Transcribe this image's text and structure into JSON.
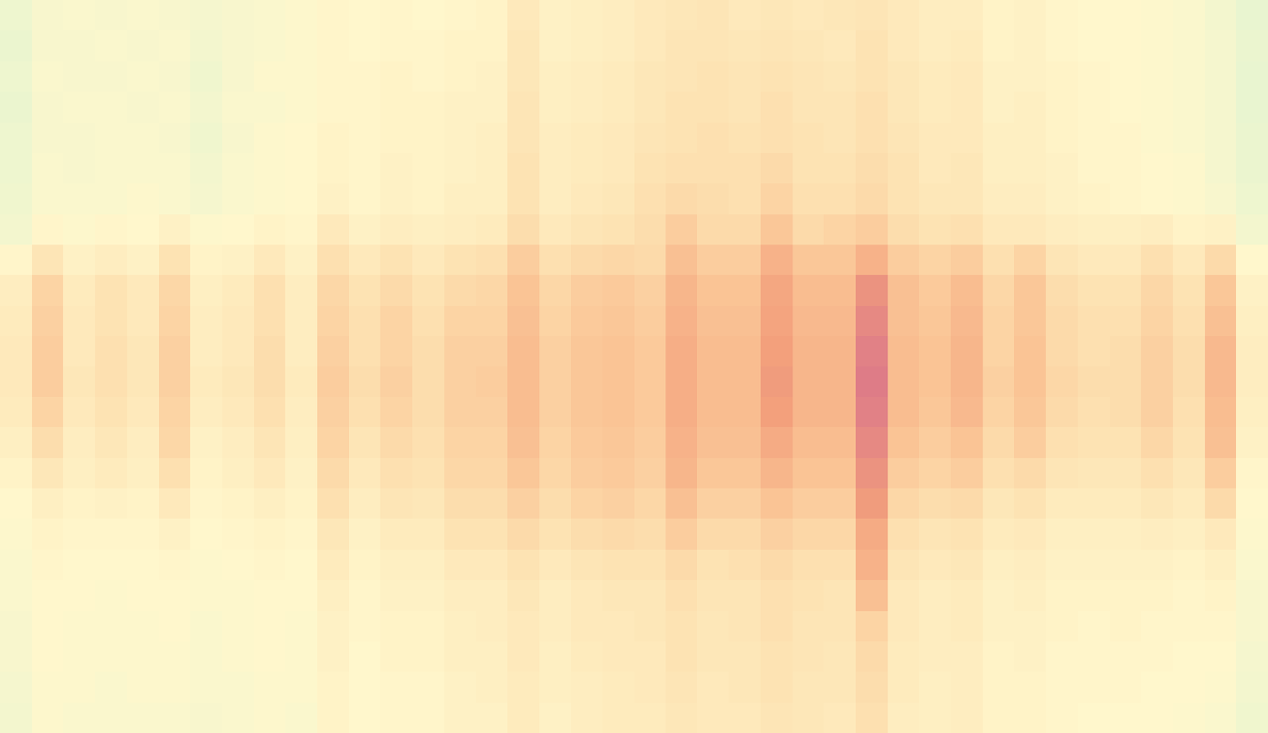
{
  "chart_data": {
    "type": "heatmap",
    "tick_labels": false,
    "zlim": [
      0,
      1
    ],
    "z": [
      [
        0.38,
        0.42,
        0.43,
        0.42,
        0.43,
        0.42,
        0.41,
        0.42,
        0.43,
        0.44,
        0.46,
        0.45,
        0.46,
        0.45,
        0.46,
        0.47,
        0.52,
        0.48,
        0.49,
        0.5,
        0.52,
        0.53,
        0.54,
        0.52,
        0.53,
        0.52,
        0.53,
        0.54,
        0.52,
        0.5,
        0.5,
        0.47,
        0.48,
        0.46,
        0.45,
        0.45,
        0.44,
        0.43,
        0.4,
        0.36
      ],
      [
        0.37,
        0.42,
        0.42,
        0.43,
        0.42,
        0.43,
        0.4,
        0.42,
        0.43,
        0.44,
        0.46,
        0.45,
        0.46,
        0.46,
        0.47,
        0.47,
        0.53,
        0.48,
        0.49,
        0.5,
        0.52,
        0.54,
        0.54,
        0.53,
        0.54,
        0.53,
        0.52,
        0.55,
        0.52,
        0.5,
        0.51,
        0.47,
        0.48,
        0.46,
        0.45,
        0.45,
        0.44,
        0.43,
        0.41,
        0.37
      ],
      [
        0.38,
        0.43,
        0.42,
        0.42,
        0.43,
        0.42,
        0.39,
        0.42,
        0.44,
        0.44,
        0.46,
        0.46,
        0.47,
        0.46,
        0.47,
        0.48,
        0.53,
        0.49,
        0.5,
        0.51,
        0.53,
        0.54,
        0.55,
        0.54,
        0.55,
        0.54,
        0.53,
        0.55,
        0.53,
        0.51,
        0.52,
        0.48,
        0.48,
        0.47,
        0.46,
        0.45,
        0.44,
        0.43,
        0.41,
        0.36
      ],
      [
        0.37,
        0.42,
        0.43,
        0.43,
        0.42,
        0.43,
        0.4,
        0.43,
        0.43,
        0.44,
        0.46,
        0.46,
        0.47,
        0.47,
        0.48,
        0.48,
        0.54,
        0.49,
        0.5,
        0.51,
        0.53,
        0.55,
        0.55,
        0.54,
        0.56,
        0.54,
        0.54,
        0.56,
        0.53,
        0.51,
        0.52,
        0.48,
        0.49,
        0.47,
        0.46,
        0.45,
        0.44,
        0.43,
        0.41,
        0.36
      ],
      [
        0.38,
        0.42,
        0.42,
        0.43,
        0.43,
        0.42,
        0.39,
        0.42,
        0.44,
        0.45,
        0.47,
        0.46,
        0.47,
        0.47,
        0.48,
        0.49,
        0.54,
        0.5,
        0.51,
        0.52,
        0.54,
        0.55,
        0.56,
        0.55,
        0.56,
        0.55,
        0.54,
        0.56,
        0.54,
        0.52,
        0.52,
        0.49,
        0.49,
        0.47,
        0.46,
        0.46,
        0.44,
        0.43,
        0.41,
        0.37
      ],
      [
        0.38,
        0.43,
        0.42,
        0.43,
        0.43,
        0.43,
        0.4,
        0.43,
        0.44,
        0.45,
        0.47,
        0.46,
        0.48,
        0.47,
        0.48,
        0.49,
        0.55,
        0.5,
        0.51,
        0.52,
        0.55,
        0.56,
        0.56,
        0.56,
        0.58,
        0.55,
        0.55,
        0.57,
        0.55,
        0.52,
        0.53,
        0.49,
        0.49,
        0.48,
        0.46,
        0.46,
        0.45,
        0.44,
        0.41,
        0.37
      ],
      [
        0.39,
        0.43,
        0.43,
        0.43,
        0.44,
        0.43,
        0.41,
        0.43,
        0.44,
        0.45,
        0.48,
        0.46,
        0.48,
        0.47,
        0.49,
        0.49,
        0.55,
        0.5,
        0.52,
        0.53,
        0.56,
        0.58,
        0.57,
        0.56,
        0.6,
        0.56,
        0.56,
        0.58,
        0.55,
        0.53,
        0.53,
        0.5,
        0.5,
        0.48,
        0.47,
        0.46,
        0.45,
        0.44,
        0.42,
        0.38
      ],
      [
        0.4,
        0.46,
        0.44,
        0.46,
        0.45,
        0.48,
        0.44,
        0.45,
        0.47,
        0.46,
        0.52,
        0.48,
        0.5,
        0.49,
        0.5,
        0.51,
        0.57,
        0.52,
        0.54,
        0.55,
        0.57,
        0.62,
        0.58,
        0.58,
        0.64,
        0.58,
        0.6,
        0.62,
        0.57,
        0.55,
        0.56,
        0.52,
        0.52,
        0.5,
        0.49,
        0.49,
        0.5,
        0.47,
        0.48,
        0.4
      ],
      [
        0.46,
        0.54,
        0.48,
        0.5,
        0.48,
        0.55,
        0.47,
        0.48,
        0.52,
        0.48,
        0.56,
        0.52,
        0.55,
        0.52,
        0.55,
        0.56,
        0.62,
        0.56,
        0.58,
        0.59,
        0.58,
        0.66,
        0.62,
        0.62,
        0.7,
        0.64,
        0.64,
        0.7,
        0.62,
        0.6,
        0.62,
        0.56,
        0.6,
        0.54,
        0.52,
        0.52,
        0.56,
        0.52,
        0.58,
        0.45
      ],
      [
        0.5,
        0.6,
        0.51,
        0.55,
        0.52,
        0.59,
        0.49,
        0.51,
        0.56,
        0.5,
        0.59,
        0.55,
        0.58,
        0.55,
        0.58,
        0.59,
        0.65,
        0.59,
        0.62,
        0.63,
        0.61,
        0.69,
        0.65,
        0.65,
        0.73,
        0.67,
        0.67,
        0.78,
        0.66,
        0.63,
        0.67,
        0.59,
        0.64,
        0.57,
        0.55,
        0.55,
        0.59,
        0.55,
        0.64,
        0.48
      ],
      [
        0.51,
        0.61,
        0.52,
        0.55,
        0.52,
        0.6,
        0.5,
        0.52,
        0.56,
        0.5,
        0.6,
        0.56,
        0.6,
        0.56,
        0.6,
        0.6,
        0.66,
        0.6,
        0.63,
        0.64,
        0.62,
        0.7,
        0.66,
        0.66,
        0.74,
        0.68,
        0.68,
        0.8,
        0.66,
        0.64,
        0.68,
        0.6,
        0.64,
        0.58,
        0.56,
        0.56,
        0.6,
        0.56,
        0.66,
        0.49
      ],
      [
        0.52,
        0.62,
        0.52,
        0.56,
        0.53,
        0.61,
        0.5,
        0.52,
        0.57,
        0.5,
        0.61,
        0.56,
        0.6,
        0.57,
        0.61,
        0.61,
        0.67,
        0.61,
        0.64,
        0.65,
        0.63,
        0.71,
        0.67,
        0.67,
        0.75,
        0.69,
        0.69,
        0.82,
        0.67,
        0.65,
        0.69,
        0.6,
        0.65,
        0.58,
        0.56,
        0.57,
        0.61,
        0.57,
        0.68,
        0.5
      ],
      [
        0.52,
        0.62,
        0.53,
        0.56,
        0.53,
        0.61,
        0.51,
        0.53,
        0.57,
        0.51,
        0.62,
        0.57,
        0.61,
        0.57,
        0.61,
        0.62,
        0.67,
        0.61,
        0.64,
        0.65,
        0.63,
        0.71,
        0.67,
        0.67,
        0.76,
        0.69,
        0.69,
        0.83,
        0.67,
        0.65,
        0.69,
        0.61,
        0.65,
        0.59,
        0.57,
        0.57,
        0.61,
        0.57,
        0.68,
        0.5
      ],
      [
        0.51,
        0.6,
        0.52,
        0.55,
        0.52,
        0.6,
        0.5,
        0.52,
        0.56,
        0.5,
        0.61,
        0.56,
        0.6,
        0.57,
        0.61,
        0.61,
        0.67,
        0.61,
        0.64,
        0.65,
        0.63,
        0.71,
        0.67,
        0.67,
        0.75,
        0.69,
        0.69,
        0.82,
        0.67,
        0.64,
        0.68,
        0.6,
        0.64,
        0.58,
        0.56,
        0.57,
        0.61,
        0.56,
        0.67,
        0.49
      ],
      [
        0.49,
        0.57,
        0.5,
        0.53,
        0.5,
        0.59,
        0.48,
        0.5,
        0.54,
        0.49,
        0.6,
        0.54,
        0.58,
        0.56,
        0.6,
        0.6,
        0.66,
        0.6,
        0.63,
        0.64,
        0.62,
        0.7,
        0.66,
        0.66,
        0.72,
        0.67,
        0.67,
        0.8,
        0.65,
        0.62,
        0.65,
        0.58,
        0.62,
        0.56,
        0.55,
        0.55,
        0.59,
        0.55,
        0.66,
        0.48
      ],
      [
        0.47,
        0.53,
        0.49,
        0.51,
        0.49,
        0.56,
        0.47,
        0.49,
        0.52,
        0.48,
        0.58,
        0.52,
        0.56,
        0.55,
        0.59,
        0.59,
        0.64,
        0.59,
        0.62,
        0.63,
        0.61,
        0.69,
        0.64,
        0.64,
        0.69,
        0.65,
        0.65,
        0.78,
        0.62,
        0.6,
        0.62,
        0.56,
        0.58,
        0.54,
        0.53,
        0.53,
        0.56,
        0.53,
        0.62,
        0.46
      ],
      [
        0.45,
        0.49,
        0.47,
        0.48,
        0.47,
        0.52,
        0.46,
        0.47,
        0.49,
        0.47,
        0.56,
        0.5,
        0.54,
        0.53,
        0.57,
        0.57,
        0.61,
        0.57,
        0.6,
        0.61,
        0.59,
        0.66,
        0.61,
        0.61,
        0.65,
        0.62,
        0.62,
        0.76,
        0.59,
        0.57,
        0.58,
        0.53,
        0.55,
        0.51,
        0.51,
        0.51,
        0.53,
        0.51,
        0.58,
        0.45
      ],
      [
        0.44,
        0.47,
        0.46,
        0.46,
        0.46,
        0.48,
        0.45,
        0.46,
        0.47,
        0.46,
        0.53,
        0.48,
        0.51,
        0.51,
        0.55,
        0.55,
        0.58,
        0.55,
        0.57,
        0.58,
        0.57,
        0.62,
        0.58,
        0.58,
        0.61,
        0.59,
        0.59,
        0.72,
        0.56,
        0.54,
        0.55,
        0.51,
        0.52,
        0.49,
        0.49,
        0.49,
        0.5,
        0.49,
        0.52,
        0.44
      ],
      [
        0.43,
        0.46,
        0.45,
        0.45,
        0.45,
        0.46,
        0.44,
        0.45,
        0.46,
        0.45,
        0.51,
        0.47,
        0.49,
        0.49,
        0.52,
        0.52,
        0.55,
        0.52,
        0.54,
        0.55,
        0.55,
        0.58,
        0.55,
        0.56,
        0.58,
        0.56,
        0.56,
        0.7,
        0.54,
        0.52,
        0.53,
        0.49,
        0.5,
        0.48,
        0.48,
        0.48,
        0.48,
        0.47,
        0.49,
        0.43
      ],
      [
        0.43,
        0.45,
        0.45,
        0.44,
        0.45,
        0.45,
        0.44,
        0.44,
        0.45,
        0.45,
        0.49,
        0.46,
        0.48,
        0.48,
        0.5,
        0.5,
        0.53,
        0.5,
        0.52,
        0.53,
        0.53,
        0.56,
        0.54,
        0.54,
        0.56,
        0.55,
        0.54,
        0.66,
        0.52,
        0.5,
        0.51,
        0.48,
        0.49,
        0.47,
        0.47,
        0.47,
        0.47,
        0.46,
        0.47,
        0.42
      ],
      [
        0.42,
        0.45,
        0.44,
        0.44,
        0.44,
        0.45,
        0.43,
        0.44,
        0.45,
        0.44,
        0.48,
        0.46,
        0.47,
        0.47,
        0.49,
        0.5,
        0.52,
        0.5,
        0.52,
        0.52,
        0.53,
        0.55,
        0.53,
        0.54,
        0.56,
        0.54,
        0.54,
        0.6,
        0.52,
        0.5,
        0.51,
        0.48,
        0.48,
        0.47,
        0.46,
        0.47,
        0.46,
        0.46,
        0.46,
        0.42
      ],
      [
        0.42,
        0.45,
        0.44,
        0.44,
        0.44,
        0.44,
        0.43,
        0.44,
        0.45,
        0.44,
        0.48,
        0.45,
        0.47,
        0.47,
        0.49,
        0.49,
        0.52,
        0.49,
        0.51,
        0.52,
        0.52,
        0.55,
        0.53,
        0.53,
        0.55,
        0.54,
        0.53,
        0.58,
        0.51,
        0.5,
        0.5,
        0.47,
        0.48,
        0.46,
        0.46,
        0.46,
        0.46,
        0.45,
        0.45,
        0.41
      ],
      [
        0.41,
        0.44,
        0.44,
        0.43,
        0.44,
        0.44,
        0.43,
        0.43,
        0.44,
        0.44,
        0.47,
        0.45,
        0.46,
        0.46,
        0.48,
        0.49,
        0.51,
        0.49,
        0.5,
        0.51,
        0.52,
        0.54,
        0.52,
        0.53,
        0.55,
        0.53,
        0.53,
        0.57,
        0.51,
        0.49,
        0.5,
        0.47,
        0.47,
        0.46,
        0.46,
        0.46,
        0.45,
        0.45,
        0.44,
        0.4
      ],
      [
        0.4,
        0.44,
        0.43,
        0.43,
        0.43,
        0.43,
        0.42,
        0.43,
        0.44,
        0.43,
        0.47,
        0.45,
        0.46,
        0.46,
        0.48,
        0.48,
        0.51,
        0.48,
        0.5,
        0.51,
        0.51,
        0.53,
        0.52,
        0.52,
        0.54,
        0.53,
        0.52,
        0.56,
        0.5,
        0.49,
        0.5,
        0.47,
        0.47,
        0.46,
        0.45,
        0.45,
        0.45,
        0.44,
        0.43,
        0.39
      ]
    ]
  }
}
